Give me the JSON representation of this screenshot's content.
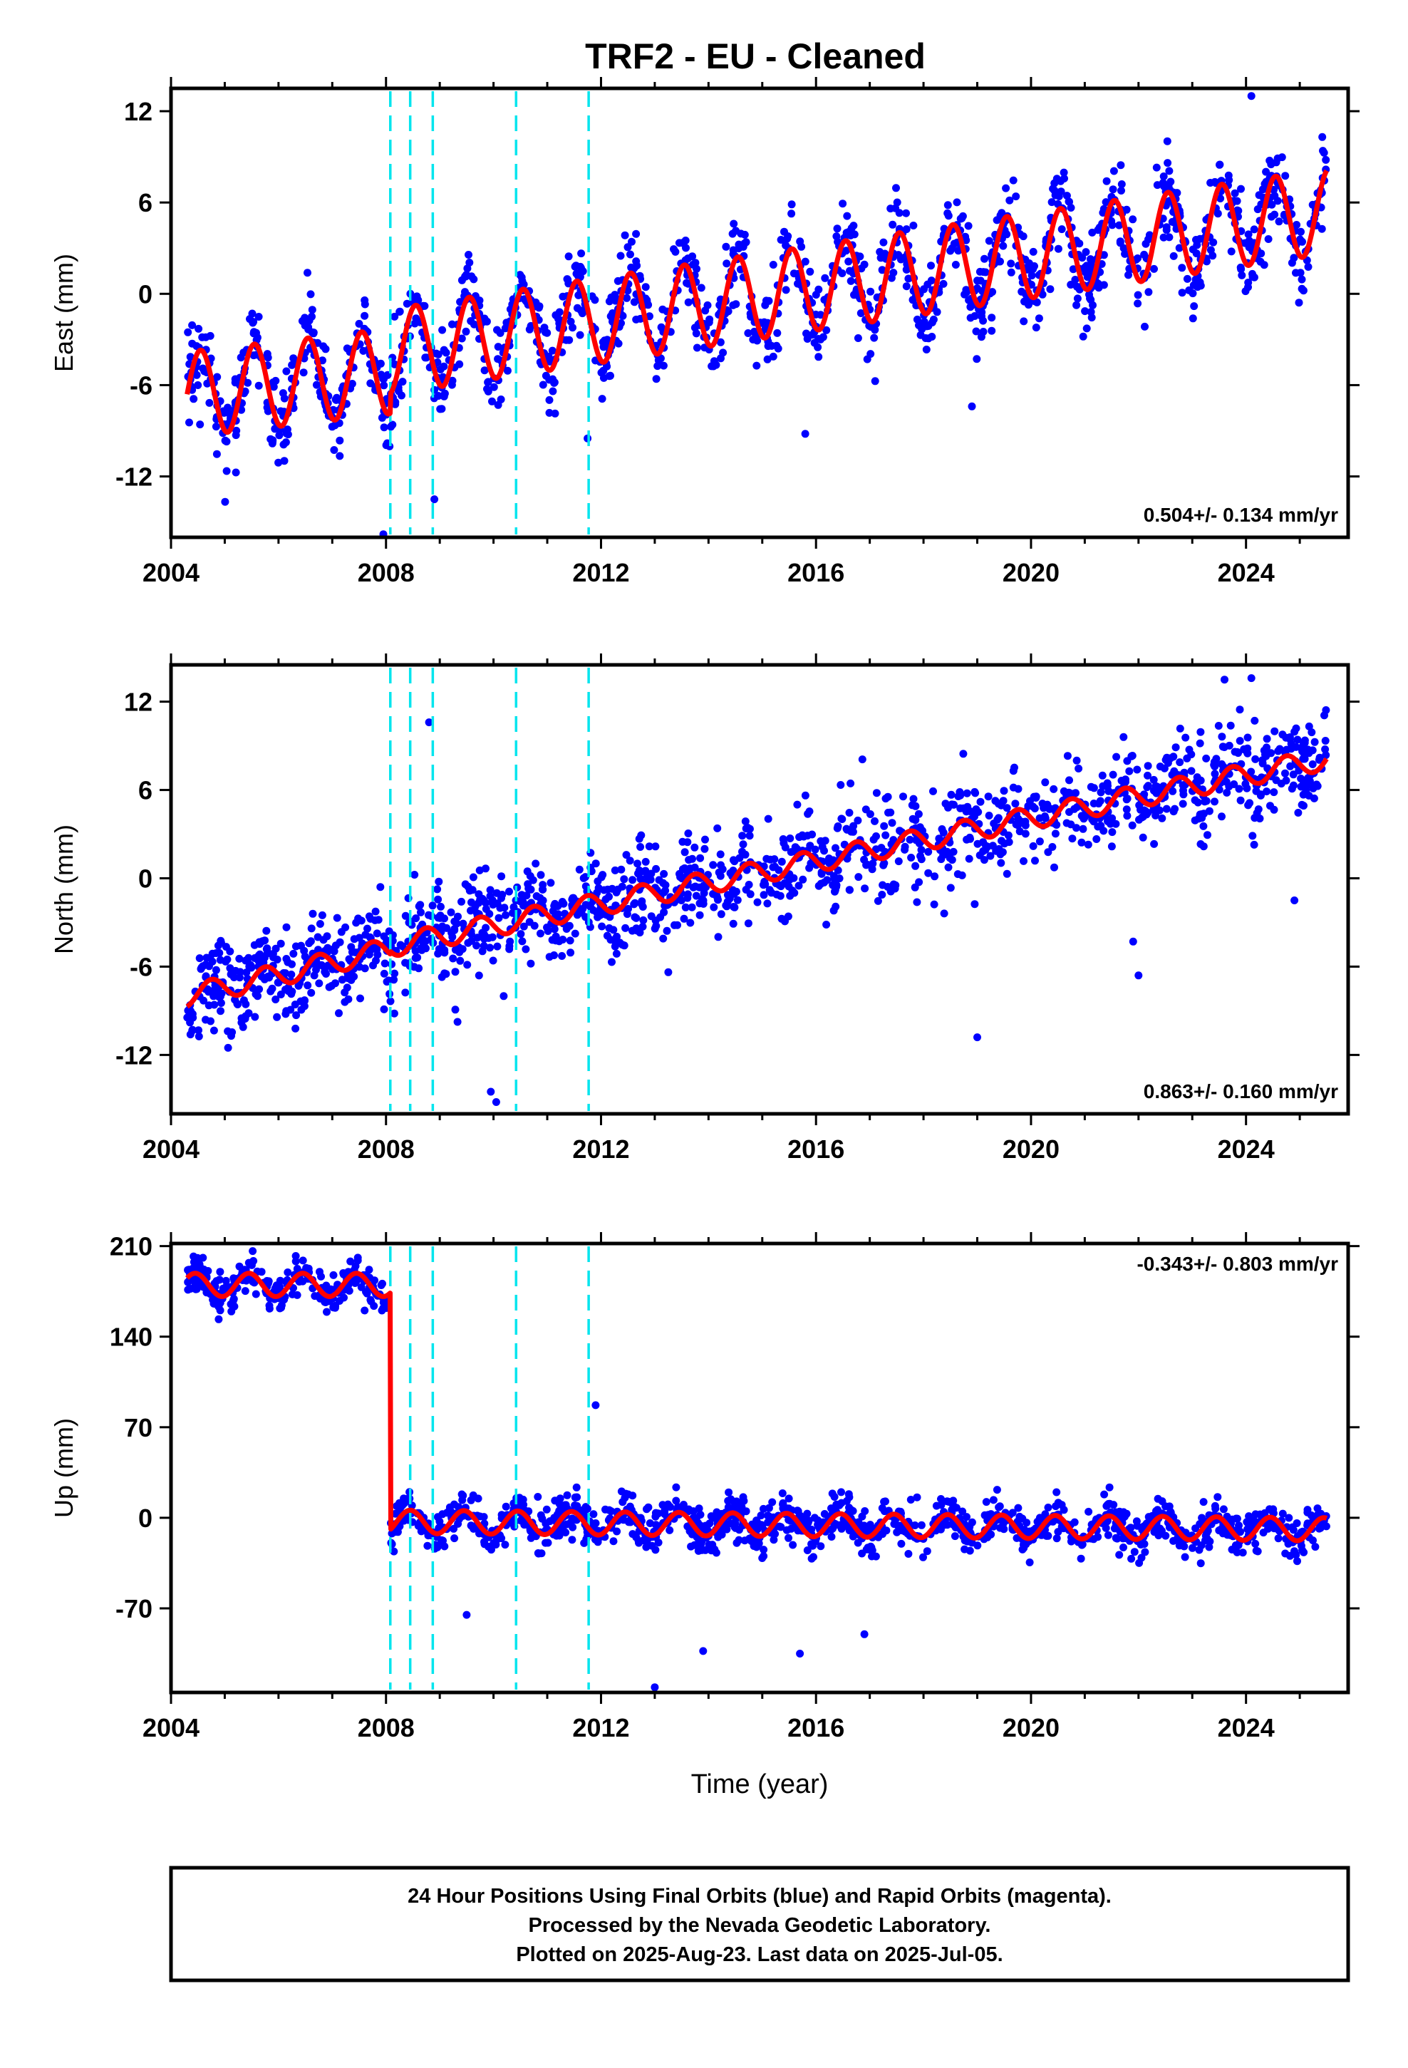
{
  "title": "TRF2  - EU - Cleaned",
  "colors": {
    "final": "#0000ff",
    "model": "#ff0000",
    "offsets": "#00e5ee",
    "frame": "#000000"
  },
  "chart_data": [
    {
      "type": "scatter",
      "component": "east",
      "ylabel": "East (mm)",
      "yticks": [
        "12",
        "6",
        "0",
        "-6",
        "-12"
      ],
      "ytick_values": [
        12,
        6,
        0,
        -6,
        -12
      ],
      "ylim": [
        -16,
        13.5
      ],
      "xlim": [
        2004.0,
        2025.9
      ],
      "xticks": [
        "2004",
        "2008",
        "2012",
        "2016",
        "2020",
        "2024"
      ],
      "xtick_values": [
        2004,
        2008,
        2012,
        2016,
        2020,
        2024
      ],
      "rate_text": "0.504+/- 0.134 mm/yr",
      "rate_position": "bottom-right",
      "grid": false,
      "model": {
        "start": 2004.3,
        "end": 2025.5,
        "annual_amplitude": 2.8,
        "phase": 0.3,
        "segments": [
          {
            "from": 2004.3,
            "to": 2008.08,
            "offset": -6.6,
            "trend": 0.4
          },
          {
            "from": 2008.08,
            "to": 2025.5,
            "offset": -3.8,
            "trend": 0.53
          }
        ]
      },
      "scatter": {
        "count": 1500,
        "sigma": 1.4,
        "outliers": [
          [
            2007.95,
            -15.8
          ],
          [
            2008.9,
            -13.5
          ],
          [
            2011.75,
            -9.5
          ],
          [
            2015.8,
            -9.2
          ],
          [
            2018.9,
            -7.4
          ],
          [
            2024.1,
            13.0
          ]
        ]
      }
    },
    {
      "type": "scatter",
      "component": "north",
      "ylabel": "North (mm)",
      "yticks": [
        "12",
        "6",
        "0",
        "-6",
        "-12"
      ],
      "ytick_values": [
        12,
        6,
        0,
        -6,
        -12
      ],
      "ylim": [
        -16,
        14.5
      ],
      "xlim": [
        2004.0,
        2025.9
      ],
      "xticks": [
        "2004",
        "2008",
        "2012",
        "2016",
        "2020",
        "2024"
      ],
      "xtick_values": [
        2004,
        2008,
        2012,
        2016,
        2020,
        2024
      ],
      "rate_text": "0.863+/- 0.160 mm/yr",
      "rate_position": "bottom-right",
      "grid": false,
      "model": {
        "start": 2004.3,
        "end": 2025.5,
        "annual_amplitude": 0.75,
        "phase": 0.5,
        "segments": [
          {
            "from": 2004.3,
            "to": 2008.08,
            "offset": -8.0,
            "trend": 0.85
          },
          {
            "from": 2008.08,
            "to": 2025.5,
            "offset": -4.6,
            "trend": 0.73
          }
        ]
      },
      "scatter": {
        "count": 1500,
        "sigma": 1.6,
        "outliers": [
          [
            2008.8,
            10.6
          ],
          [
            2009.95,
            -14.5
          ],
          [
            2010.05,
            -15.2
          ],
          [
            2019.0,
            -10.8
          ],
          [
            2021.9,
            -4.3
          ],
          [
            2022.0,
            -6.6
          ],
          [
            2023.6,
            13.5
          ],
          [
            2024.1,
            13.6
          ],
          [
            2024.9,
            -1.5
          ]
        ]
      }
    },
    {
      "type": "scatter",
      "component": "up",
      "ylabel": "Up (mm)",
      "yticks": [
        "210",
        "140",
        "70",
        "0",
        "-70"
      ],
      "ytick_values": [
        210,
        140,
        70,
        0,
        -70
      ],
      "ylim": [
        -135,
        212
      ],
      "xlim": [
        2004.0,
        2025.9
      ],
      "xticks": [
        "2004",
        "2008",
        "2012",
        "2016",
        "2020",
        "2024"
      ],
      "xtick_values": [
        2004,
        2008,
        2012,
        2016,
        2020,
        2024
      ],
      "xlabel": "Time (year)",
      "rate_text": "-0.343+/- 0.803 mm/yr",
      "rate_position": "top-right",
      "grid": false,
      "model": {
        "start": 2004.3,
        "end": 2025.5,
        "annual_amplitude": 9.0,
        "phase": 0.2,
        "segments": [
          {
            "from": 2004.3,
            "to": 2008.08,
            "offset": 180,
            "trend": 0.0
          },
          {
            "from": 2008.08,
            "to": 2025.5,
            "offset": -3,
            "trend": -0.34
          }
        ]
      },
      "scatter": {
        "count": 1500,
        "sigma": 8.0,
        "outliers": [
          [
            2011.9,
            87
          ],
          [
            2013.0,
            -131
          ],
          [
            2013.9,
            -103
          ],
          [
            2015.7,
            -105
          ],
          [
            2016.9,
            -90
          ],
          [
            2009.5,
            -75
          ]
        ]
      }
    }
  ],
  "offsets_years": [
    2008.08,
    2008.45,
    2008.87,
    2010.42,
    2011.77
  ],
  "footer": {
    "line1": "24 Hour Positions Using Final Orbits (blue) and Rapid Orbits (magenta).",
    "line2": "Processed by the Nevada Geodetic Laboratory.",
    "line3": "Plotted on 2025-Aug-23. Last data on 2025-Jul-05."
  }
}
